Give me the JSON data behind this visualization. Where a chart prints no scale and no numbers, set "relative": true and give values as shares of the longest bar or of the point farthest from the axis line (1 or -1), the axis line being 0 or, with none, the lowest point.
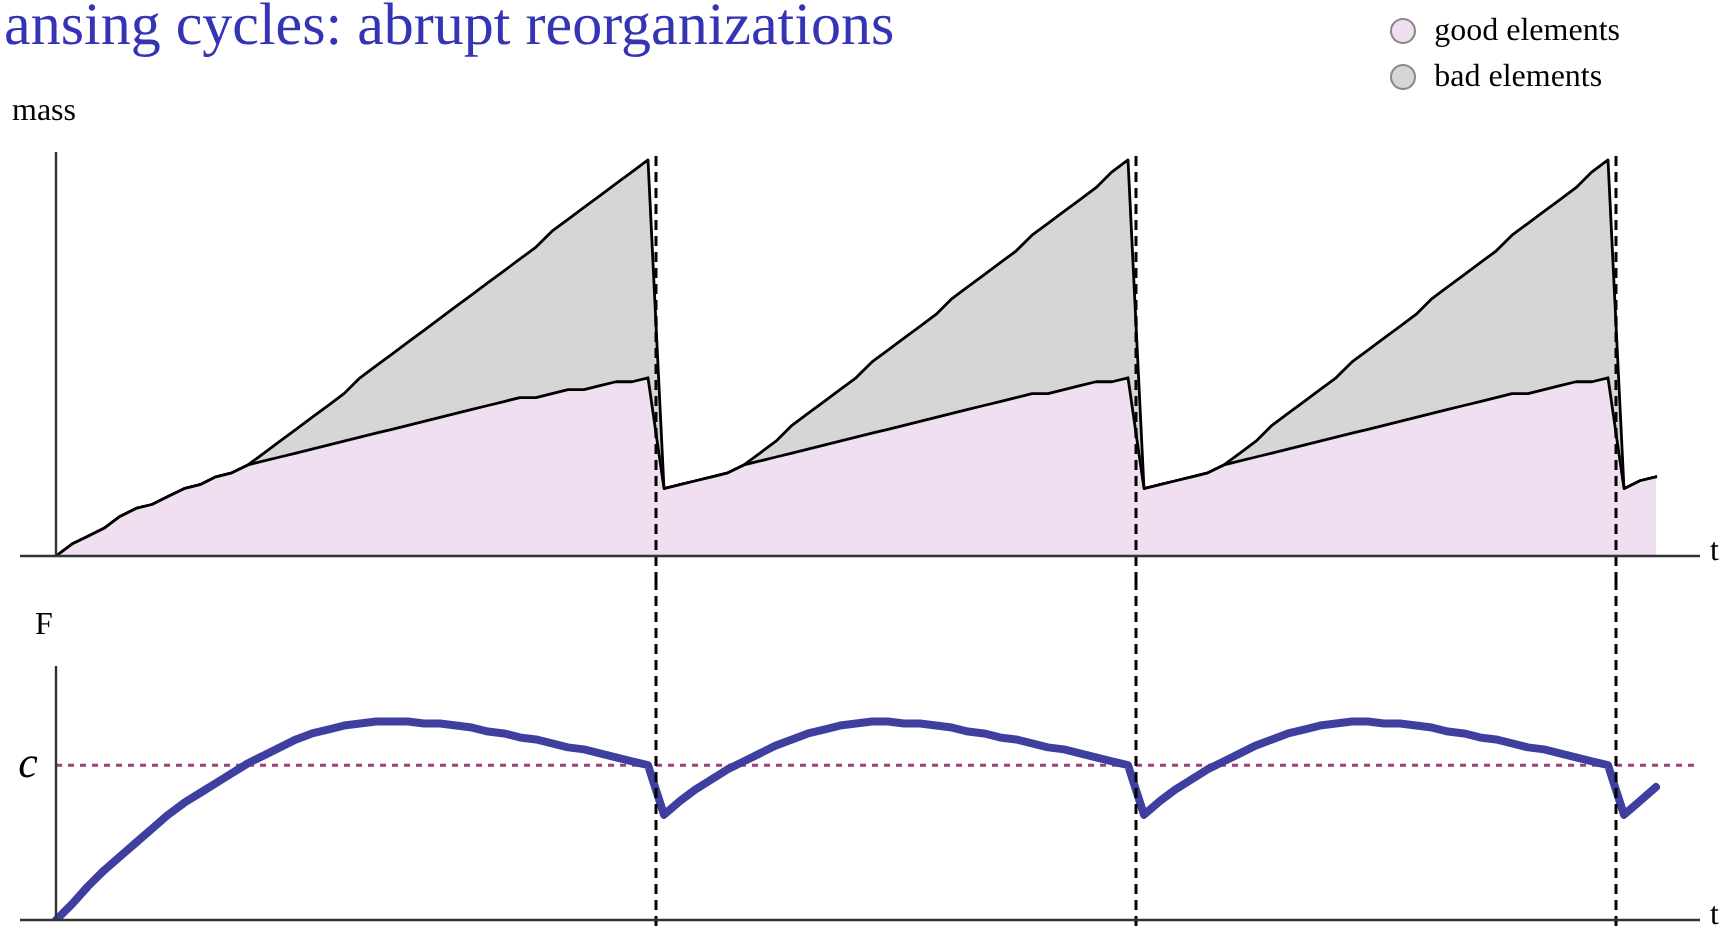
{
  "chart_data": [
    {
      "type": "area",
      "stacked": true,
      "relative": true,
      "marker": "none",
      "title": "ansing cycles: abrupt reorganizations",
      "ylabel": "mass",
      "xlabel": "t",
      "legend": "top right",
      "categories": [
        null,
        null,
        null,
        null,
        null,
        null,
        null,
        null,
        null,
        null,
        null,
        null,
        null,
        null,
        null,
        null,
        null,
        null,
        null,
        null,
        null,
        null,
        null,
        null,
        null,
        null,
        null,
        null,
        null,
        null,
        null,
        null,
        null,
        null,
        null,
        null,
        null,
        null,
        null,
        null,
        null,
        null,
        null,
        null,
        null,
        null,
        null,
        null,
        null,
        null,
        null,
        null,
        null,
        null,
        null,
        null,
        null,
        null,
        null,
        null,
        null,
        null,
        null,
        null,
        null,
        null,
        null,
        null,
        null,
        null,
        null,
        null,
        null,
        null,
        null,
        null,
        null,
        null,
        null,
        null,
        null,
        null,
        null,
        null,
        null,
        null,
        null,
        null,
        null,
        null,
        null,
        null,
        null,
        null,
        null,
        null,
        null,
        null,
        null,
        null,
        null
      ],
      "series": [
        {
          "name": "good elements",
          "color": "#efdff0",
          "values": [
            0,
            0.03,
            0.05,
            0.07,
            0.1,
            0.12,
            0.13,
            0.15,
            0.17,
            0.18,
            0.2,
            0.21,
            0.23,
            0.24,
            0.25,
            0.26,
            0.27,
            0.28,
            0.29,
            0.3,
            0.31,
            0.32,
            0.33,
            0.34,
            0.35,
            0.36,
            0.37,
            0.38,
            0.39,
            0.4,
            0.4,
            0.41,
            0.42,
            0.42,
            0.43,
            0.44,
            0.44,
            0.45,
            0.17,
            0.18,
            0.19,
            0.2,
            0.21,
            0.23,
            0.24,
            0.25,
            0.26,
            0.27,
            0.28,
            0.29,
            0.3,
            0.31,
            0.32,
            0.33,
            0.34,
            0.35,
            0.36,
            0.37,
            0.38,
            0.39,
            0.4,
            0.41,
            0.41,
            0.42,
            0.43,
            0.44,
            0.44,
            0.45,
            0.17,
            0.18,
            0.19,
            0.2,
            0.21,
            0.23,
            0.24,
            0.25,
            0.26,
            0.27,
            0.28,
            0.29,
            0.3,
            0.31,
            0.32,
            0.33,
            0.34,
            0.35,
            0.36,
            0.37,
            0.38,
            0.39,
            0.4,
            0.41,
            0.41,
            0.42,
            0.43,
            0.44,
            0.44,
            0.45,
            0.17,
            0.19,
            0.2
          ]
        },
        {
          "name": "bad elements",
          "color": "#d6d6d6",
          "values": [
            0,
            0,
            0,
            0,
            0,
            0,
            0,
            0,
            0,
            0,
            0,
            0,
            0,
            0.02,
            0.04,
            0.06,
            0.08,
            0.1,
            0.12,
            0.15,
            0.17,
            0.19,
            0.21,
            0.23,
            0.25,
            0.27,
            0.29,
            0.31,
            0.33,
            0.35,
            0.38,
            0.41,
            0.43,
            0.46,
            0.48,
            0.5,
            0.53,
            0.55,
            0,
            0,
            0,
            0,
            0,
            0,
            0.02,
            0.04,
            0.07,
            0.09,
            0.11,
            0.13,
            0.15,
            0.18,
            0.2,
            0.22,
            0.24,
            0.26,
            0.29,
            0.31,
            0.33,
            0.35,
            0.37,
            0.4,
            0.43,
            0.45,
            0.47,
            0.49,
            0.53,
            0.55,
            0,
            0,
            0,
            0,
            0,
            0,
            0.02,
            0.04,
            0.07,
            0.09,
            0.11,
            0.13,
            0.15,
            0.18,
            0.2,
            0.22,
            0.24,
            0.26,
            0.29,
            0.31,
            0.33,
            0.35,
            0.37,
            0.4,
            0.43,
            0.45,
            0.47,
            0.49,
            0.53,
            0.55,
            0,
            0,
            0
          ]
        }
      ]
    },
    {
      "type": "line",
      "relative": true,
      "marker": "none",
      "ylabel": "F",
      "xlabel": "t",
      "categories": [
        null,
        null,
        null,
        null,
        null,
        null,
        null,
        null,
        null,
        null,
        null,
        null,
        null,
        null,
        null,
        null,
        null,
        null,
        null,
        null,
        null,
        null,
        null,
        null,
        null,
        null,
        null,
        null,
        null,
        null,
        null,
        null,
        null,
        null,
        null,
        null,
        null,
        null,
        null,
        null,
        null,
        null,
        null,
        null,
        null,
        null,
        null,
        null,
        null,
        null,
        null,
        null,
        null,
        null,
        null,
        null,
        null,
        null,
        null,
        null,
        null,
        null,
        null,
        null,
        null,
        null,
        null,
        null,
        null,
        null,
        null,
        null,
        null,
        null,
        null,
        null,
        null,
        null,
        null,
        null,
        null,
        null,
        null,
        null,
        null,
        null,
        null,
        null,
        null,
        null,
        null,
        null,
        null,
        null,
        null,
        null,
        null,
        null,
        null,
        null,
        null
      ],
      "series": [
        {
          "color": "#3f3fa0",
          "values": [
            0,
            0.08,
            0.17,
            0.25,
            0.32,
            0.39,
            0.46,
            0.53,
            0.59,
            0.64,
            0.69,
            0.74,
            0.79,
            0.83,
            0.87,
            0.91,
            0.94,
            0.96,
            0.98,
            0.99,
            1.0,
            1.0,
            1.0,
            0.99,
            0.99,
            0.98,
            0.97,
            0.95,
            0.94,
            0.92,
            0.91,
            0.89,
            0.87,
            0.86,
            0.84,
            0.82,
            0.8,
            0.78,
            0.53,
            0.6,
            0.66,
            0.71,
            0.76,
            0.8,
            0.84,
            0.88,
            0.91,
            0.94,
            0.96,
            0.98,
            0.99,
            1.0,
            1.0,
            0.99,
            0.99,
            0.98,
            0.97,
            0.95,
            0.94,
            0.92,
            0.91,
            0.89,
            0.87,
            0.86,
            0.84,
            0.82,
            0.8,
            0.78,
            0.53,
            0.6,
            0.66,
            0.71,
            0.76,
            0.8,
            0.84,
            0.88,
            0.91,
            0.94,
            0.96,
            0.98,
            0.99,
            1.0,
            1.0,
            0.99,
            0.99,
            0.98,
            0.97,
            0.95,
            0.94,
            0.92,
            0.91,
            0.89,
            0.87,
            0.86,
            0.84,
            0.82,
            0.8,
            0.78,
            0.53,
            0.6,
            0.67
          ]
        }
      ],
      "ref_lines": [
        {
          "axis": "y",
          "value": 0.78,
          "label": "c",
          "color": "#a0407a",
          "line_style": "dotted"
        }
      ]
    }
  ]
}
